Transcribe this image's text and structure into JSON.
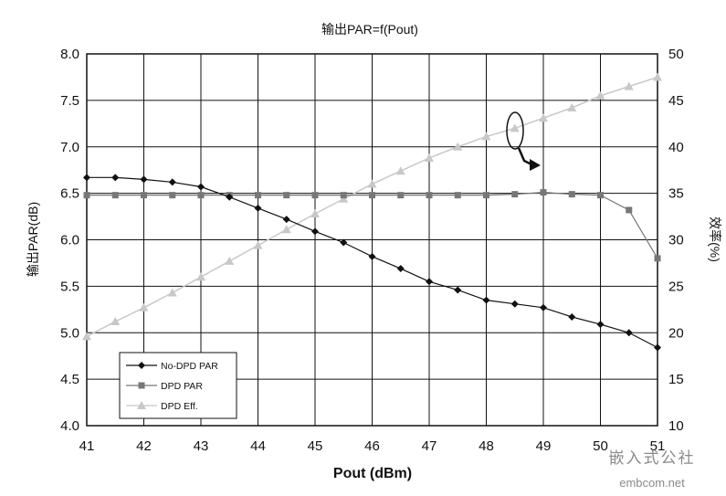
{
  "chart_data": {
    "type": "line",
    "title": "输出PAR=f(Pout)",
    "xlabel": "Pout (dBm)",
    "ylabel": "输出PAR(dB)",
    "y2label": "效率(%)",
    "xlim": [
      41,
      51
    ],
    "ylim": [
      4.0,
      8.0
    ],
    "y2lim": [
      10,
      50
    ],
    "x_ticks": [
      "41",
      "42",
      "43",
      "44",
      "45",
      "46",
      "47",
      "48",
      "49",
      "50",
      "51"
    ],
    "y_ticks": [
      "4.0",
      "4.5",
      "5.0",
      "5.5",
      "6.0",
      "6.5",
      "7.0",
      "7.5",
      "8.0"
    ],
    "y2_ticks": [
      "10",
      "15",
      "20",
      "25",
      "30",
      "35",
      "40",
      "45",
      "50"
    ],
    "grid": true,
    "legend_position": "bottom-left",
    "series": [
      {
        "name": "No-DPD PAR",
        "axis": "left",
        "color": "#111111",
        "marker": "diamond",
        "x": [
          41,
          41.5,
          42,
          42.5,
          43,
          43.5,
          44,
          44.5,
          45,
          45.5,
          46,
          46.5,
          47,
          47.5,
          48,
          48.5,
          49,
          49.5,
          50,
          50.5,
          51
        ],
        "y": [
          6.67,
          6.67,
          6.65,
          6.62,
          6.57,
          6.46,
          6.34,
          6.22,
          6.09,
          5.97,
          5.82,
          5.69,
          5.55,
          5.46,
          5.35,
          5.31,
          5.27,
          5.17,
          5.09,
          5.0,
          4.84
        ]
      },
      {
        "name": "DPD PAR",
        "axis": "left",
        "color": "#777777",
        "marker": "square",
        "x": [
          41,
          41.5,
          42,
          42.5,
          43,
          43.5,
          44,
          44.5,
          45,
          45.5,
          46,
          46.5,
          47,
          47.5,
          48,
          48.5,
          49,
          49.5,
          50,
          50.5,
          51
        ],
        "y": [
          6.48,
          6.48,
          6.48,
          6.48,
          6.48,
          6.48,
          6.48,
          6.48,
          6.48,
          6.48,
          6.48,
          6.48,
          6.48,
          6.48,
          6.48,
          6.49,
          6.51,
          6.49,
          6.48,
          6.32,
          5.8
        ]
      },
      {
        "name": "DPD Eff.",
        "axis": "right",
        "color": "#c8c8c8",
        "marker": "triangle",
        "x": [
          41,
          41.5,
          42,
          42.5,
          43,
          43.5,
          44,
          44.5,
          45,
          45.5,
          46,
          46.5,
          47,
          47.5,
          48,
          48.5,
          49,
          49.5,
          50,
          50.5,
          51
        ],
        "y": [
          19.6,
          21.2,
          22.7,
          24.3,
          26.0,
          27.7,
          29.4,
          31.1,
          32.8,
          34.4,
          36.0,
          37.4,
          38.8,
          40.0,
          41.1,
          42.0,
          43.1,
          44.2,
          45.5,
          46.5,
          47.5
        ]
      }
    ]
  },
  "watermark": {
    "line1": "嵌入式公社",
    "line2": "embcom.net"
  }
}
